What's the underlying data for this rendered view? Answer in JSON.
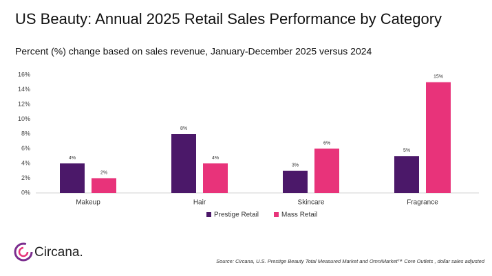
{
  "chart_data": {
    "type": "bar",
    "title": "US Beauty: Annual 2025 Retail Sales Performance by Category",
    "subtitle": "Percent (%) change based on sales revenue, January-December 2025 versus 2024",
    "categories": [
      "Makeup",
      "Hair",
      "Skincare",
      "Fragrance"
    ],
    "series": [
      {
        "name": "Prestige Retail",
        "color": "#4b1869",
        "values": [
          4,
          8,
          3,
          5
        ],
        "value_labels": [
          "4%",
          "8%",
          "3%",
          "5%"
        ]
      },
      {
        "name": "Mass Retail",
        "color": "#e8337a",
        "values": [
          2,
          4,
          6,
          15
        ],
        "value_labels": [
          "2%",
          "4%",
          "6%",
          "15%"
        ]
      }
    ],
    "ylim": [
      0,
      16
    ],
    "yticks": [
      {
        "value": 0,
        "label": "0%"
      },
      {
        "value": 2,
        "label": "2%"
      },
      {
        "value": 4,
        "label": "4%"
      },
      {
        "value": 6,
        "label": "6%"
      },
      {
        "value": 8,
        "label": "8%"
      },
      {
        "value": 10,
        "label": "10%"
      },
      {
        "value": 12,
        "label": "12%"
      },
      {
        "value": 14,
        "label": "14%"
      },
      {
        "value": 16,
        "label": "16%"
      }
    ],
    "grid": false,
    "legend": "bottom",
    "source": "Source: Circana, U.S. Prestige Beauty Total Measured Market and OmniMarket™ Core Outlets , dollar sales adjusted"
  },
  "brand": "Circana."
}
